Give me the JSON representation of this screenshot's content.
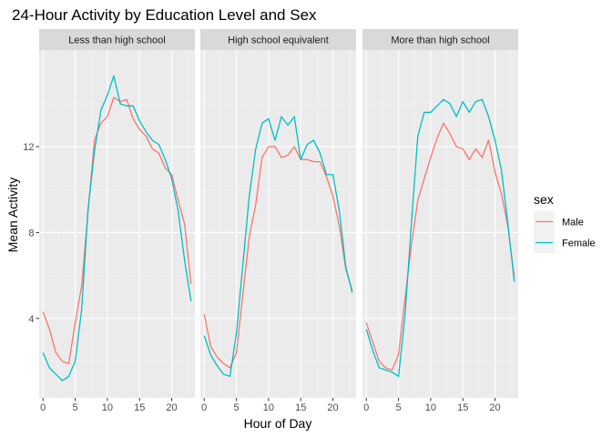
{
  "chart_data": {
    "type": "line",
    "title": "24-Hour Activity by Education Level and Sex",
    "xlabel": "Hour of Day",
    "ylabel": "Mean Activity",
    "xlim": [
      -0.6,
      23.6
    ],
    "ylim": [
      0.3,
      16.5
    ],
    "x_ticks": [
      0,
      5,
      10,
      15,
      20
    ],
    "y_ticks": [
      4,
      8,
      12
    ],
    "grid": true,
    "legend": {
      "title": "sex",
      "position": "right",
      "entries": [
        {
          "name": "Male",
          "color": "#F8766D"
        },
        {
          "name": "Female",
          "color": "#00BFC4"
        }
      ]
    },
    "colors": {
      "panel_background": "#EBEBEB",
      "strip_background": "#D9D9D9",
      "grid_major": "#FFFFFF",
      "male": "#F8766D",
      "female": "#00BFC4"
    },
    "x": [
      0,
      1,
      2,
      3,
      4,
      5,
      6,
      7,
      8,
      9,
      10,
      11,
      12,
      13,
      14,
      15,
      16,
      17,
      18,
      19,
      20,
      21,
      22,
      23
    ],
    "panels": [
      {
        "label": "Less than high school",
        "series": [
          {
            "name": "Male",
            "values": [
              4.3,
              3.5,
              2.4,
              2.0,
              1.9,
              3.8,
              5.5,
              9.0,
              12.3,
              13.1,
              13.4,
              14.3,
              14.1,
              14.2,
              13.3,
              12.8,
              12.5,
              11.9,
              11.7,
              11.0,
              10.7,
              9.5,
              8.4,
              5.6
            ]
          },
          {
            "name": "Female",
            "values": [
              2.4,
              1.7,
              1.4,
              1.1,
              1.3,
              2.0,
              4.4,
              9.1,
              11.8,
              13.7,
              14.4,
              15.3,
              14.0,
              13.9,
              13.9,
              13.2,
              12.7,
              12.3,
              12.1,
              11.4,
              10.5,
              9.0,
              6.7,
              4.8
            ]
          }
        ]
      },
      {
        "label": "High school equivalent",
        "series": [
          {
            "name": "Male",
            "values": [
              4.2,
              2.7,
              2.2,
              1.9,
              1.7,
              2.4,
              5.1,
              7.8,
              9.3,
              11.5,
              12.0,
              12.0,
              11.5,
              11.6,
              12.0,
              11.4,
              11.4,
              11.3,
              11.3,
              10.6,
              9.7,
              8.3,
              6.3,
              5.3
            ]
          },
          {
            "name": "Female",
            "values": [
              3.2,
              2.3,
              1.8,
              1.4,
              1.3,
              3.3,
              6.5,
              9.7,
              11.9,
              13.1,
              13.3,
              12.3,
              13.4,
              13.0,
              13.4,
              11.4,
              12.1,
              12.3,
              11.7,
              10.7,
              10.7,
              9.0,
              6.4,
              5.2
            ]
          }
        ]
      },
      {
        "label": "More than high school",
        "series": [
          {
            "name": "Male",
            "values": [
              3.8,
              2.9,
              2.0,
              1.7,
              1.6,
              2.3,
              4.9,
              7.4,
              9.5,
              10.5,
              11.5,
              12.4,
              13.1,
              12.6,
              12.0,
              11.9,
              11.4,
              11.9,
              11.5,
              12.3,
              10.8,
              9.8,
              8.3,
              5.9
            ]
          },
          {
            "name": "Female",
            "values": [
              3.5,
              2.5,
              1.7,
              1.6,
              1.5,
              1.3,
              4.1,
              8.4,
              12.5,
              13.6,
              13.6,
              13.9,
              14.2,
              14.0,
              13.4,
              14.1,
              13.6,
              14.1,
              14.2,
              13.4,
              12.3,
              10.9,
              8.4,
              5.7
            ]
          }
        ]
      }
    ]
  }
}
